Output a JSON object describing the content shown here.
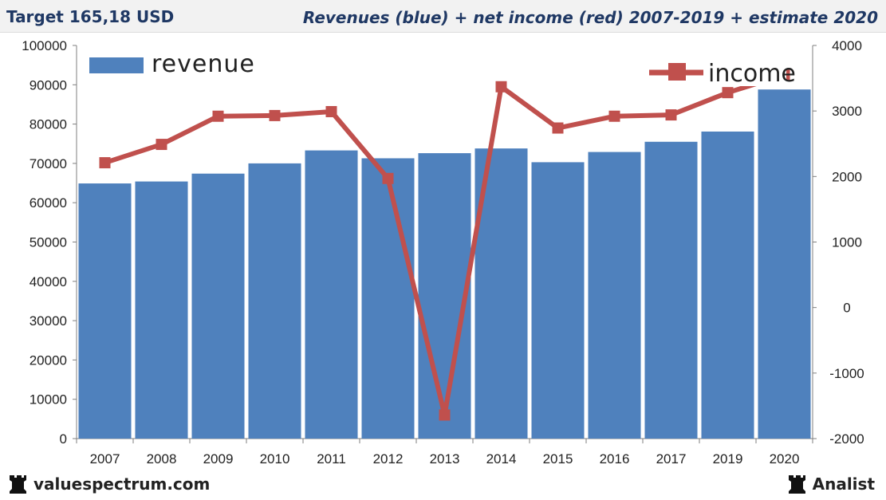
{
  "header": {
    "ticker_label": "Target 165,18 USD",
    "title": "Revenues (blue) + net income (red) 2007-2019 + estimate 2020"
  },
  "footer": {
    "brand_left": "valuespectrum.com",
    "brand_right": "Analist"
  },
  "colors": {
    "revenue_bar": "#4f81bd",
    "income_line": "#c0504d",
    "header_text": "#1f3864"
  },
  "chart_data": {
    "type": "bar",
    "title": "Revenues (blue) + net income (red) 2007-2019 + estimate 2020",
    "categories": [
      "2007",
      "2008",
      "2009",
      "2010",
      "2011",
      "2012",
      "2013",
      "2014",
      "2015",
      "2016",
      "2017",
      "2019",
      "2020"
    ],
    "series": [
      {
        "name": "revenue",
        "type": "bar",
        "axis": "left",
        "values": [
          64900,
          65400,
          67400,
          70000,
          73300,
          71300,
          72600,
          73800,
          70300,
          72900,
          75500,
          78100,
          88800
        ]
      },
      {
        "name": "income",
        "type": "line",
        "axis": "right",
        "values": [
          2210,
          2490,
          2920,
          2930,
          2990,
          1970,
          -1640,
          3370,
          2740,
          2920,
          2940,
          3280,
          3550
        ]
      }
    ],
    "y_left": {
      "min": 0,
      "max": 100000,
      "step": 10000,
      "ticks": [
        "0",
        "10000",
        "20000",
        "30000",
        "40000",
        "50000",
        "60000",
        "70000",
        "80000",
        "90000",
        "100000"
      ]
    },
    "y_right": {
      "min": -2000,
      "max": 4000,
      "step": 1000,
      "ticks": [
        "-2000",
        "-1000",
        "0",
        "1000",
        "2000",
        "3000",
        "4000"
      ]
    },
    "legend": [
      {
        "name": "revenue",
        "position": "top-left"
      },
      {
        "name": "income",
        "position": "top-right"
      }
    ],
    "grid": false
  }
}
